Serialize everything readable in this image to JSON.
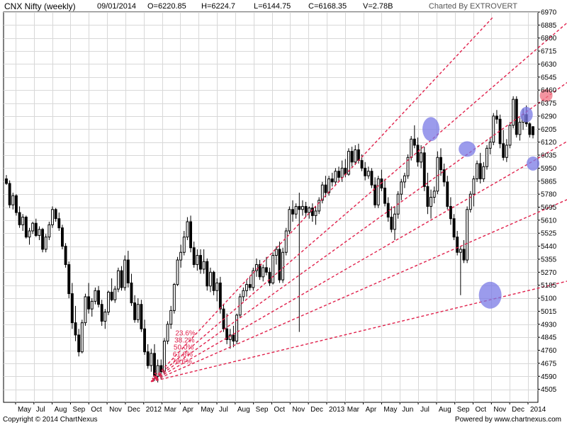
{
  "header": {
    "title": "CNX Nifty (weekly)",
    "date": "09/01/2014",
    "open": "O=6220.85",
    "high": "H=6224.7",
    "low": "L=6144.75",
    "close": "C=6168.35",
    "volume": "V=2.78B",
    "brand": "Charted By EXTROVERT"
  },
  "footer": {
    "copyright": "Copyright © 2014 ChartNexus",
    "powered": "Powered by www.chartnexus.com"
  },
  "colors": {
    "candle": "#000000",
    "trendline": "#e0204b",
    "highlight_blue": "#7a7ae6",
    "highlight_red": "#f07080",
    "grid": "#d8d8d8"
  },
  "chart_data": {
    "type": "candlestick",
    "title": "CNX Nifty (weekly)",
    "x_axis": {
      "labels": [
        "May",
        "Jul",
        "Aug",
        "Sep",
        "Oct",
        "Nov",
        "Dec",
        "2012",
        "Mar",
        "Apr",
        "May",
        "Jul",
        "Aug",
        "Sep",
        "Oct",
        "Nov",
        "Dec",
        "2013",
        "Mar",
        "Apr",
        "May",
        "Jun",
        "Jul",
        "Aug",
        "Sep",
        "Oct",
        "Nov",
        "Dec",
        "2014"
      ]
    },
    "y_axis": {
      "ticks": [
        4505,
        4590,
        4675,
        4760,
        4845,
        4930,
        5015,
        5100,
        5185,
        5270,
        5355,
        5440,
        5525,
        5610,
        5695,
        5780,
        5865,
        5950,
        6035,
        6120,
        6205,
        6290,
        6375,
        6460,
        6545,
        6630,
        6715,
        6800,
        6885,
        6970
      ],
      "range": [
        4420,
        6970
      ],
      "position": "right"
    },
    "grid": true,
    "candles": [
      {
        "o": 5880,
        "h": 5905,
        "l": 5840,
        "c": 5850
      },
      {
        "o": 5850,
        "h": 5870,
        "l": 5690,
        "c": 5710
      },
      {
        "o": 5710,
        "h": 5790,
        "l": 5680,
        "c": 5770
      },
      {
        "o": 5770,
        "h": 5780,
        "l": 5640,
        "c": 5660
      },
      {
        "o": 5660,
        "h": 5700,
        "l": 5560,
        "c": 5580
      },
      {
        "o": 5580,
        "h": 5650,
        "l": 5540,
        "c": 5630
      },
      {
        "o": 5630,
        "h": 5640,
        "l": 5490,
        "c": 5500
      },
      {
        "o": 5500,
        "h": 5560,
        "l": 5450,
        "c": 5540
      },
      {
        "o": 5540,
        "h": 5600,
        "l": 5520,
        "c": 5590
      },
      {
        "o": 5590,
        "h": 5620,
        "l": 5500,
        "c": 5510
      },
      {
        "o": 5510,
        "h": 5570,
        "l": 5480,
        "c": 5550
      },
      {
        "o": 5550,
        "h": 5560,
        "l": 5400,
        "c": 5420
      },
      {
        "o": 5420,
        "h": 5520,
        "l": 5400,
        "c": 5500
      },
      {
        "o": 5500,
        "h": 5600,
        "l": 5480,
        "c": 5580
      },
      {
        "o": 5580,
        "h": 5700,
        "l": 5560,
        "c": 5680
      },
      {
        "o": 5680,
        "h": 5690,
        "l": 5600,
        "c": 5620
      },
      {
        "o": 5620,
        "h": 5660,
        "l": 5540,
        "c": 5560
      },
      {
        "o": 5560,
        "h": 5580,
        "l": 5420,
        "c": 5440
      },
      {
        "o": 5440,
        "h": 5460,
        "l": 5300,
        "c": 5320
      },
      {
        "o": 5320,
        "h": 5340,
        "l": 5100,
        "c": 5130
      },
      {
        "o": 5130,
        "h": 5200,
        "l": 4900,
        "c": 4940
      },
      {
        "o": 4940,
        "h": 5050,
        "l": 4820,
        "c": 4860
      },
      {
        "o": 4860,
        "h": 4900,
        "l": 4720,
        "c": 4750
      },
      {
        "o": 4750,
        "h": 4960,
        "l": 4740,
        "c": 4940
      },
      {
        "o": 4940,
        "h": 5130,
        "l": 4920,
        "c": 5110
      },
      {
        "o": 5110,
        "h": 5200,
        "l": 5000,
        "c": 5030
      },
      {
        "o": 5030,
        "h": 5100,
        "l": 4980,
        "c": 5080
      },
      {
        "o": 5080,
        "h": 5170,
        "l": 5060,
        "c": 5150
      },
      {
        "o": 5150,
        "h": 5180,
        "l": 5040,
        "c": 5060
      },
      {
        "o": 5060,
        "h": 5090,
        "l": 4920,
        "c": 4950
      },
      {
        "o": 4950,
        "h": 5030,
        "l": 4900,
        "c": 5010
      },
      {
        "o": 5010,
        "h": 5150,
        "l": 4990,
        "c": 5140
      },
      {
        "o": 5140,
        "h": 5230,
        "l": 5080,
        "c": 5090
      },
      {
        "o": 5090,
        "h": 5180,
        "l": 5070,
        "c": 5160
      },
      {
        "o": 5160,
        "h": 5300,
        "l": 5140,
        "c": 5280
      },
      {
        "o": 5280,
        "h": 5310,
        "l": 5150,
        "c": 5170
      },
      {
        "o": 5170,
        "h": 5380,
        "l": 5150,
        "c": 5350
      },
      {
        "o": 5350,
        "h": 5410,
        "l": 5170,
        "c": 5200
      },
      {
        "o": 5200,
        "h": 5260,
        "l": 5050,
        "c": 5070
      },
      {
        "o": 5070,
        "h": 5120,
        "l": 4940,
        "c": 4960
      },
      {
        "o": 4960,
        "h": 5100,
        "l": 4940,
        "c": 5060
      },
      {
        "o": 5060,
        "h": 5090,
        "l": 4880,
        "c": 4900
      },
      {
        "o": 4900,
        "h": 4960,
        "l": 4730,
        "c": 4750
      },
      {
        "o": 4750,
        "h": 4800,
        "l": 4640,
        "c": 4660
      },
      {
        "o": 4660,
        "h": 4770,
        "l": 4620,
        "c": 4740
      },
      {
        "o": 4740,
        "h": 4800,
        "l": 4560,
        "c": 4590
      },
      {
        "o": 4590,
        "h": 4700,
        "l": 4550,
        "c": 4660
      },
      {
        "o": 4660,
        "h": 4700,
        "l": 4570,
        "c": 4620
      },
      {
        "o": 4620,
        "h": 4840,
        "l": 4600,
        "c": 4820
      },
      {
        "o": 4820,
        "h": 4950,
        "l": 4800,
        "c": 4930
      },
      {
        "o": 4930,
        "h": 5050,
        "l": 4900,
        "c": 5020
      },
      {
        "o": 5020,
        "h": 5200,
        "l": 5000,
        "c": 5190
      },
      {
        "o": 5190,
        "h": 5370,
        "l": 5180,
        "c": 5350
      },
      {
        "o": 5350,
        "h": 5450,
        "l": 5300,
        "c": 5400
      },
      {
        "o": 5400,
        "h": 5540,
        "l": 5380,
        "c": 5500
      },
      {
        "o": 5500,
        "h": 5630,
        "l": 5480,
        "c": 5600
      },
      {
        "o": 5600,
        "h": 5640,
        "l": 5400,
        "c": 5430
      },
      {
        "o": 5430,
        "h": 5470,
        "l": 5300,
        "c": 5320
      },
      {
        "o": 5320,
        "h": 5420,
        "l": 5280,
        "c": 5380
      },
      {
        "o": 5380,
        "h": 5420,
        "l": 5260,
        "c": 5290
      },
      {
        "o": 5290,
        "h": 5420,
        "l": 5260,
        "c": 5340
      },
      {
        "o": 5340,
        "h": 5360,
        "l": 5150,
        "c": 5180
      },
      {
        "o": 5180,
        "h": 5300,
        "l": 5140,
        "c": 5270
      },
      {
        "o": 5270,
        "h": 5280,
        "l": 5120,
        "c": 5150
      },
      {
        "o": 5150,
        "h": 5230,
        "l": 5080,
        "c": 5200
      },
      {
        "o": 5200,
        "h": 5240,
        "l": 5000,
        "c": 5030
      },
      {
        "o": 5030,
        "h": 5060,
        "l": 4880,
        "c": 4900
      },
      {
        "o": 4900,
        "h": 5000,
        "l": 4800,
        "c": 4830
      },
      {
        "o": 4830,
        "h": 4900,
        "l": 4770,
        "c": 4860
      },
      {
        "o": 4860,
        "h": 4920,
        "l": 4780,
        "c": 4820
      },
      {
        "o": 4820,
        "h": 5000,
        "l": 4800,
        "c": 4990
      },
      {
        "o": 4990,
        "h": 5130,
        "l": 4970,
        "c": 5110
      },
      {
        "o": 5110,
        "h": 5170,
        "l": 5080,
        "c": 5150
      },
      {
        "o": 5150,
        "h": 5220,
        "l": 5110,
        "c": 5190
      },
      {
        "o": 5190,
        "h": 5240,
        "l": 5150,
        "c": 5170
      },
      {
        "o": 5170,
        "h": 5300,
        "l": 5150,
        "c": 5280
      },
      {
        "o": 5280,
        "h": 5360,
        "l": 5240,
        "c": 5320
      },
      {
        "o": 5320,
        "h": 5350,
        "l": 5220,
        "c": 5240
      },
      {
        "o": 5240,
        "h": 5320,
        "l": 5210,
        "c": 5300
      },
      {
        "o": 5300,
        "h": 5370,
        "l": 5250,
        "c": 5270
      },
      {
        "o": 5270,
        "h": 5300,
        "l": 5180,
        "c": 5200
      },
      {
        "o": 5200,
        "h": 5400,
        "l": 5190,
        "c": 5380
      },
      {
        "o": 5380,
        "h": 5440,
        "l": 5320,
        "c": 5420
      },
      {
        "o": 5420,
        "h": 5470,
        "l": 5200,
        "c": 5220
      },
      {
        "o": 5220,
        "h": 5430,
        "l": 5200,
        "c": 5400
      },
      {
        "o": 5400,
        "h": 5560,
        "l": 5380,
        "c": 5540
      },
      {
        "o": 5540,
        "h": 5700,
        "l": 5520,
        "c": 5680
      },
      {
        "o": 5680,
        "h": 5740,
        "l": 5600,
        "c": 5650
      },
      {
        "o": 5650,
        "h": 5720,
        "l": 5620,
        "c": 5700
      },
      {
        "o": 5700,
        "h": 5790,
        "l": 4880,
        "c": 5680
      },
      {
        "o": 5680,
        "h": 5740,
        "l": 5640,
        "c": 5700
      },
      {
        "o": 5700,
        "h": 5730,
        "l": 5630,
        "c": 5660
      },
      {
        "o": 5660,
        "h": 5700,
        "l": 5620,
        "c": 5690
      },
      {
        "o": 5690,
        "h": 5720,
        "l": 5600,
        "c": 5640
      },
      {
        "o": 5640,
        "h": 5700,
        "l": 5580,
        "c": 5670
      },
      {
        "o": 5670,
        "h": 5760,
        "l": 5650,
        "c": 5740
      },
      {
        "o": 5740,
        "h": 5860,
        "l": 5720,
        "c": 5840
      },
      {
        "o": 5840,
        "h": 5900,
        "l": 5760,
        "c": 5790
      },
      {
        "o": 5790,
        "h": 5900,
        "l": 5770,
        "c": 5880
      },
      {
        "o": 5880,
        "h": 5920,
        "l": 5830,
        "c": 5860
      },
      {
        "o": 5860,
        "h": 5950,
        "l": 5840,
        "c": 5930
      },
      {
        "o": 5930,
        "h": 5960,
        "l": 5860,
        "c": 5890
      },
      {
        "o": 5890,
        "h": 6000,
        "l": 5860,
        "c": 5950
      },
      {
        "o": 5950,
        "h": 6010,
        "l": 5890,
        "c": 5910
      },
      {
        "o": 5910,
        "h": 6080,
        "l": 5900,
        "c": 6060
      },
      {
        "o": 6060,
        "h": 6090,
        "l": 5960,
        "c": 5990
      },
      {
        "o": 5990,
        "h": 6100,
        "l": 5970,
        "c": 6070
      },
      {
        "o": 6070,
        "h": 6110,
        "l": 5980,
        "c": 6000
      },
      {
        "o": 6000,
        "h": 6040,
        "l": 5930,
        "c": 5950
      },
      {
        "o": 5950,
        "h": 5990,
        "l": 5870,
        "c": 5900
      },
      {
        "o": 5900,
        "h": 5960,
        "l": 5880,
        "c": 5930
      },
      {
        "o": 5930,
        "h": 5950,
        "l": 5820,
        "c": 5840
      },
      {
        "o": 5840,
        "h": 5890,
        "l": 5690,
        "c": 5710
      },
      {
        "o": 5710,
        "h": 5900,
        "l": 5690,
        "c": 5880
      },
      {
        "o": 5880,
        "h": 5940,
        "l": 5800,
        "c": 5820
      },
      {
        "o": 5820,
        "h": 5880,
        "l": 5700,
        "c": 5720
      },
      {
        "o": 5720,
        "h": 5760,
        "l": 5600,
        "c": 5630
      },
      {
        "o": 5630,
        "h": 5700,
        "l": 5530,
        "c": 5550
      },
      {
        "o": 5550,
        "h": 5700,
        "l": 5480,
        "c": 5650
      },
      {
        "o": 5650,
        "h": 5800,
        "l": 5620,
        "c": 5780
      },
      {
        "o": 5780,
        "h": 5880,
        "l": 5740,
        "c": 5860
      },
      {
        "o": 5860,
        "h": 5920,
        "l": 5820,
        "c": 5900
      },
      {
        "o": 5900,
        "h": 6040,
        "l": 5880,
        "c": 6020
      },
      {
        "o": 6020,
        "h": 6160,
        "l": 6000,
        "c": 6140
      },
      {
        "o": 6140,
        "h": 6230,
        "l": 6080,
        "c": 6100
      },
      {
        "o": 6100,
        "h": 6150,
        "l": 5960,
        "c": 5990
      },
      {
        "o": 5990,
        "h": 6100,
        "l": 5950,
        "c": 6050
      },
      {
        "o": 6050,
        "h": 6090,
        "l": 5800,
        "c": 5830
      },
      {
        "o": 5830,
        "h": 5920,
        "l": 5650,
        "c": 5700
      },
      {
        "o": 5700,
        "h": 5810,
        "l": 5620,
        "c": 5760
      },
      {
        "o": 5760,
        "h": 5830,
        "l": 5720,
        "c": 5800
      },
      {
        "o": 5800,
        "h": 6060,
        "l": 5780,
        "c": 6020
      },
      {
        "o": 6020,
        "h": 6080,
        "l": 5900,
        "c": 5940
      },
      {
        "o": 5940,
        "h": 5980,
        "l": 5830,
        "c": 5860
      },
      {
        "o": 5860,
        "h": 5900,
        "l": 5680,
        "c": 5700
      },
      {
        "o": 5700,
        "h": 5760,
        "l": 5580,
        "c": 5620
      },
      {
        "o": 5620,
        "h": 5650,
        "l": 5480,
        "c": 5500
      },
      {
        "o": 5500,
        "h": 5540,
        "l": 5380,
        "c": 5400
      },
      {
        "o": 5400,
        "h": 5440,
        "l": 5120,
        "c": 5420
      },
      {
        "o": 5420,
        "h": 5480,
        "l": 5330,
        "c": 5350
      },
      {
        "o": 5350,
        "h": 5700,
        "l": 5330,
        "c": 5680
      },
      {
        "o": 5680,
        "h": 5800,
        "l": 5660,
        "c": 5780
      },
      {
        "o": 5780,
        "h": 5900,
        "l": 5700,
        "c": 5880
      },
      {
        "o": 5880,
        "h": 6000,
        "l": 5860,
        "c": 5980
      },
      {
        "o": 5980,
        "h": 6050,
        "l": 5850,
        "c": 5880
      },
      {
        "o": 5880,
        "h": 5990,
        "l": 5860,
        "c": 5960
      },
      {
        "o": 5960,
        "h": 6100,
        "l": 5940,
        "c": 6080
      },
      {
        "o": 6080,
        "h": 6150,
        "l": 6040,
        "c": 6120
      },
      {
        "o": 6120,
        "h": 6310,
        "l": 6100,
        "c": 6290
      },
      {
        "o": 6290,
        "h": 6330,
        "l": 6240,
        "c": 6270
      },
      {
        "o": 6270,
        "h": 6300,
        "l": 6080,
        "c": 6110
      },
      {
        "o": 6110,
        "h": 6200,
        "l": 6000,
        "c": 6020
      },
      {
        "o": 6020,
        "h": 6140,
        "l": 5990,
        "c": 6100
      },
      {
        "o": 6100,
        "h": 6250,
        "l": 6080,
        "c": 6230
      },
      {
        "o": 6230,
        "h": 6420,
        "l": 6210,
        "c": 6400
      },
      {
        "o": 6400,
        "h": 6420,
        "l": 6150,
        "c": 6170
      },
      {
        "o": 6170,
        "h": 6280,
        "l": 6130,
        "c": 6250
      },
      {
        "o": 6250,
        "h": 6340,
        "l": 6200,
        "c": 6300
      },
      {
        "o": 6300,
        "h": 6360,
        "l": 6220,
        "c": 6240
      },
      {
        "o": 6240,
        "h": 6250,
        "l": 6150,
        "c": 6170
      },
      {
        "o": 6220.85,
        "h": 6224.7,
        "l": 6144.75,
        "c": 6168.35
      }
    ],
    "fibonacci_fan": {
      "origin": {
        "candle": 44,
        "value": 4555
      },
      "labels": [
        "23.6%",
        "38.2%",
        "50.0%",
        "61.8%",
        "78.6%"
      ],
      "lines": [
        {
          "to_candle": 148,
          "to_value": 6940
        },
        {
          "to_candle": 172,
          "to_value": 6930
        },
        {
          "to_candle": 172,
          "to_value": 6535
        },
        {
          "to_candle": 172,
          "to_value": 6145
        },
        {
          "to_candle": 172,
          "to_value": 5760
        },
        {
          "to_candle": 172,
          "to_value": 5220
        }
      ]
    },
    "highlights": [
      {
        "candle": 129,
        "value": 6205,
        "color": "blue"
      },
      {
        "candle": 140,
        "value": 6075,
        "color": "blue"
      },
      {
        "candle": 158,
        "value": 6300,
        "color": "blue"
      },
      {
        "candle": 160,
        "value": 5980,
        "color": "blue"
      },
      {
        "candle": 164,
        "value": 6425,
        "color": "red"
      },
      {
        "candle": 147,
        "value": 5120,
        "color": "blue"
      }
    ]
  }
}
